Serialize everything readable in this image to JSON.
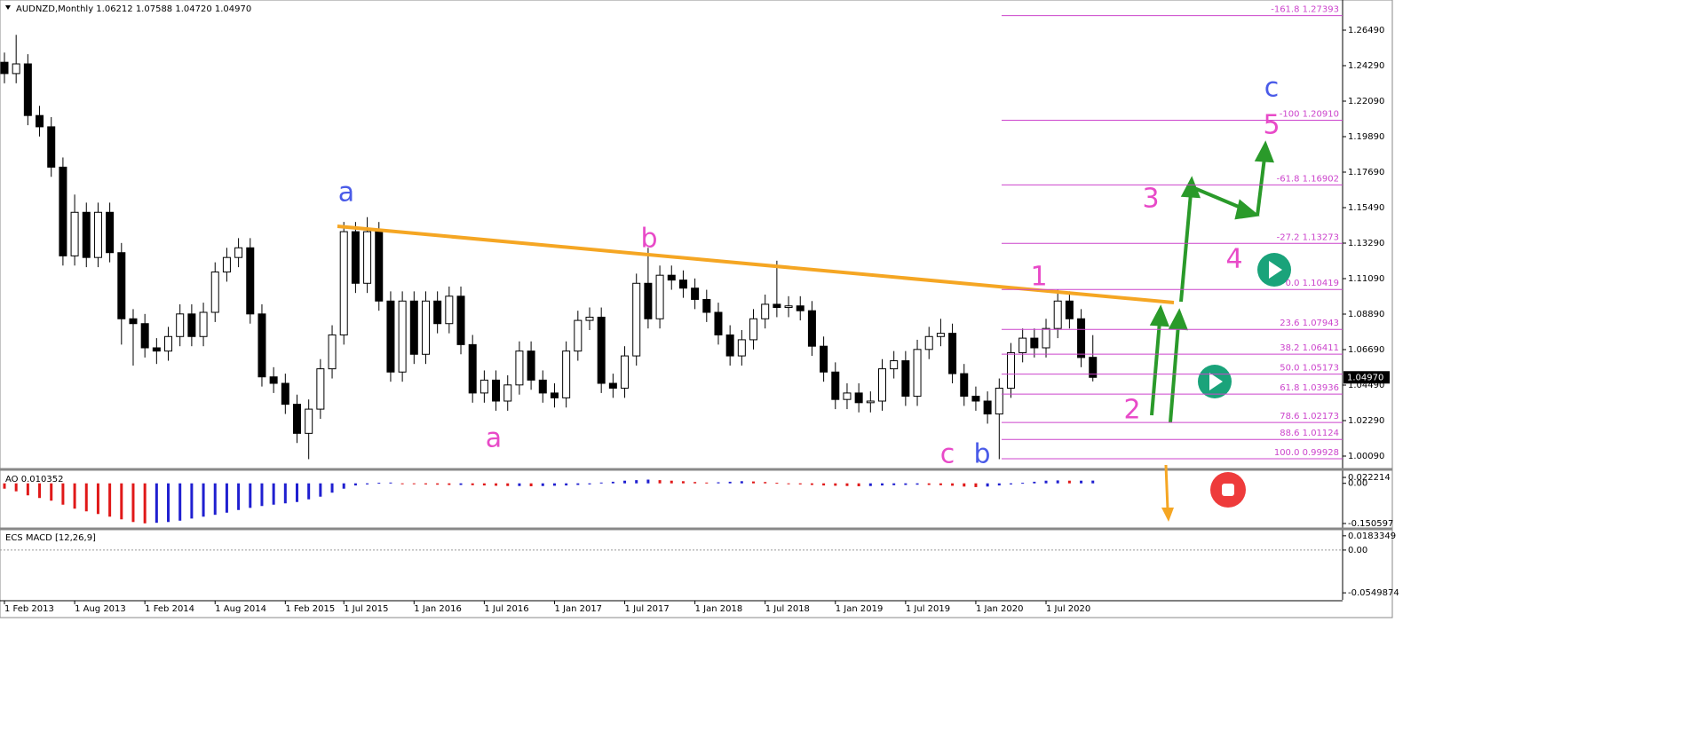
{
  "chart_data": {
    "type": "candlestick",
    "title": "AUDNZD,Monthly  1.06212 1.07588 1.04720 1.04970",
    "categories": [
      "1 Feb 2013",
      null,
      null,
      null,
      null,
      null,
      "1 Aug 2013",
      null,
      null,
      null,
      null,
      null,
      "1 Feb 2014",
      null,
      null,
      null,
      null,
      null,
      "1 Aug 2014",
      null,
      null,
      null,
      null,
      null,
      "1 Feb 2015",
      null,
      null,
      null,
      null,
      "1 Jul 2015",
      null,
      null,
      null,
      null,
      null,
      "1 Jan 2016",
      null,
      null,
      null,
      null,
      null,
      "1 Jul 2016",
      null,
      null,
      null,
      null,
      null,
      "1 Jan 2017",
      null,
      null,
      null,
      null,
      null,
      "1 Jul 2017",
      null,
      null,
      null,
      null,
      null,
      "1 Jan 2018",
      null,
      null,
      null,
      null,
      null,
      "1 Jul 2018",
      null,
      null,
      null,
      null,
      null,
      "1 Jan 2019",
      null,
      null,
      null,
      null,
      null,
      "1 Jul 2019",
      null,
      null,
      null,
      null,
      null,
      "1 Jan 2020",
      null,
      null,
      null,
      null,
      null,
      "1 Jul 2020",
      null,
      null,
      null,
      null
    ],
    "open": [
      1.245,
      1.238,
      1.244,
      1.212,
      1.205,
      1.18,
      1.125,
      1.152,
      1.124,
      1.152,
      1.127,
      1.086,
      1.083,
      1.068,
      1.066,
      1.075,
      1.089,
      1.075,
      1.09,
      1.115,
      1.124,
      1.13,
      1.089,
      1.05,
      1.046,
      1.033,
      1.015,
      1.03,
      1.055,
      1.076,
      1.14,
      1.108,
      1.14,
      1.097,
      1.053,
      1.097,
      1.064,
      1.097,
      1.083,
      1.1,
      1.07,
      1.04,
      1.048,
      1.035,
      1.045,
      1.066,
      1.048,
      1.04,
      1.037,
      1.066,
      1.085,
      1.087,
      1.046,
      1.043,
      1.063,
      1.108,
      1.086,
      1.113,
      1.11,
      1.105,
      1.098,
      1.09,
      1.076,
      1.063,
      1.073,
      1.086,
      1.095,
      1.093,
      1.094,
      1.091,
      1.069,
      1.053,
      1.036,
      1.04,
      1.034,
      1.035,
      1.055,
      1.06,
      1.038,
      1.067,
      1.075,
      1.077,
      1.052,
      1.038,
      1.035,
      1.027,
      1.043,
      1.065,
      1.074,
      1.068,
      1.08,
      1.097,
      1.086,
      1.06212
    ],
    "high": [
      1.251,
      1.262,
      1.25,
      1.218,
      1.211,
      1.186,
      1.163,
      1.158,
      1.158,
      1.158,
      1.133,
      1.092,
      1.089,
      1.074,
      1.081,
      1.095,
      1.095,
      1.096,
      1.121,
      1.13,
      1.136,
      1.136,
      1.095,
      1.056,
      1.052,
      1.039,
      1.036,
      1.061,
      1.082,
      1.146,
      1.146,
      1.149,
      1.146,
      1.103,
      1.103,
      1.103,
      1.103,
      1.103,
      1.106,
      1.106,
      1.076,
      1.054,
      1.054,
      1.051,
      1.072,
      1.072,
      1.054,
      1.046,
      1.072,
      1.091,
      1.093,
      1.093,
      1.052,
      1.069,
      1.114,
      1.13,
      1.119,
      1.119,
      1.116,
      1.111,
      1.104,
      1.096,
      1.082,
      1.079,
      1.092,
      1.101,
      1.122,
      1.1,
      1.1,
      1.097,
      1.075,
      1.059,
      1.046,
      1.046,
      1.041,
      1.061,
      1.066,
      1.066,
      1.073,
      1.081,
      1.086,
      1.083,
      1.058,
      1.044,
      1.041,
      1.049,
      1.071,
      1.08,
      1.08,
      1.086,
      1.104,
      1.103,
      1.092,
      1.07588
    ],
    "low": [
      1.232,
      1.232,
      1.206,
      1.199,
      1.174,
      1.119,
      1.119,
      1.118,
      1.118,
      1.121,
      1.07,
      1.057,
      1.062,
      1.058,
      1.06,
      1.069,
      1.069,
      1.069,
      1.084,
      1.109,
      1.118,
      1.083,
      1.044,
      1.04,
      1.027,
      1.009,
      0.999,
      1.024,
      1.049,
      1.07,
      1.102,
      1.102,
      1.091,
      1.047,
      1.047,
      1.058,
      1.058,
      1.077,
      1.077,
      1.064,
      1.034,
      1.034,
      1.029,
      1.029,
      1.039,
      1.042,
      1.034,
      1.031,
      1.031,
      1.06,
      1.079,
      1.04,
      1.037,
      1.037,
      1.057,
      1.08,
      1.08,
      1.104,
      1.099,
      1.092,
      1.084,
      1.07,
      1.057,
      1.057,
      1.067,
      1.08,
      1.087,
      1.087,
      1.085,
      1.063,
      1.047,
      1.03,
      1.03,
      1.028,
      1.028,
      1.029,
      1.049,
      1.032,
      1.032,
      1.061,
      1.069,
      1.046,
      1.032,
      1.029,
      1.021,
      0.999,
      1.037,
      1.059,
      1.062,
      1.062,
      1.074,
      1.08,
      1.056,
      1.0472
    ],
    "close": [
      1.238,
      1.244,
      1.212,
      1.205,
      1.18,
      1.125,
      1.152,
      1.124,
      1.152,
      1.127,
      1.086,
      1.083,
      1.068,
      1.066,
      1.075,
      1.089,
      1.075,
      1.09,
      1.115,
      1.124,
      1.13,
      1.089,
      1.05,
      1.046,
      1.033,
      1.015,
      1.03,
      1.055,
      1.076,
      1.14,
      1.108,
      1.14,
      1.097,
      1.053,
      1.097,
      1.064,
      1.097,
      1.083,
      1.1,
      1.07,
      1.04,
      1.048,
      1.035,
      1.045,
      1.066,
      1.048,
      1.04,
      1.037,
      1.066,
      1.085,
      1.087,
      1.046,
      1.043,
      1.063,
      1.108,
      1.086,
      1.113,
      1.11,
      1.105,
      1.098,
      1.09,
      1.076,
      1.063,
      1.073,
      1.086,
      1.095,
      1.093,
      1.094,
      1.091,
      1.069,
      1.053,
      1.036,
      1.04,
      1.034,
      1.035,
      1.055,
      1.06,
      1.038,
      1.067,
      1.075,
      1.077,
      1.052,
      1.038,
      1.035,
      1.027,
      1.043,
      1.065,
      1.074,
      1.068,
      1.08,
      1.097,
      1.086,
      1.062,
      1.0497
    ],
    "up_color": "#ffffff",
    "down_color": "#000000",
    "ylim": [
      0.9932,
      1.2825
    ],
    "yticks": [
      {
        "value": 1.2649,
        "label": "1.26490"
      },
      {
        "value": 1.2429,
        "label": "1.24290"
      },
      {
        "value": 1.2209,
        "label": "1.22090"
      },
      {
        "value": 1.1989,
        "label": "1.19890"
      },
      {
        "value": 1.1769,
        "label": "1.17690"
      },
      {
        "value": 1.1549,
        "label": "1.15490"
      },
      {
        "value": 1.1329,
        "label": "1.13290"
      },
      {
        "value": 1.1109,
        "label": "1.11090"
      },
      {
        "value": 1.0889,
        "label": "1.08890"
      },
      {
        "value": 1.0669,
        "label": "1.06690"
      },
      {
        "value": 1.0449,
        "label": "1.04490"
      },
      {
        "value": 1.0229,
        "label": "1.02290"
      },
      {
        "value": 1.0009,
        "label": "1.00090"
      }
    ],
    "price_tag": {
      "value": 1.0497,
      "label": "1.04970"
    },
    "fib_color": "#cc44cc",
    "fib_levels": [
      {
        "value": 1.27393,
        "label": "-161.8 1.27393"
      },
      {
        "value": 1.2091,
        "label": "-100 1.20910"
      },
      {
        "value": 1.16902,
        "label": "-61.8 1.16902"
      },
      {
        "value": 1.13273,
        "label": "-27.2 1.13273"
      },
      {
        "value": 1.10419,
        "label": "0.0 1.10419"
      },
      {
        "value": 1.07943,
        "label": "23.6 1.07943"
      },
      {
        "value": 1.06411,
        "label": "38.2 1.06411"
      },
      {
        "value": 1.05173,
        "label": "50.0 1.05173"
      },
      {
        "value": 1.03936,
        "label": "61.8 1.03936"
      },
      {
        "value": 1.02173,
        "label": "78.6 1.02173"
      },
      {
        "value": 1.01124,
        "label": "88.6 1.01124"
      },
      {
        "value": 0.99928,
        "label": "100.0 0.99928"
      }
    ],
    "annotations": [
      {
        "text": "a",
        "color": "#4a5be8"
      },
      {
        "text": "b",
        "color": "#e84ac8"
      },
      {
        "text": "a",
        "color": "#e84ac8"
      },
      {
        "text": "c",
        "color": "#e84ac8"
      },
      {
        "text": "b",
        "color": "#4a5be8"
      },
      {
        "text": "1",
        "color": "#e84ac8"
      },
      {
        "text": "2",
        "color": "#e84ac8"
      },
      {
        "text": "3",
        "color": "#e84ac8"
      },
      {
        "text": "4",
        "color": "#e84ac8"
      },
      {
        "text": "5",
        "color": "#e84ac8"
      },
      {
        "text": "c",
        "color": "#4a5be8"
      }
    ],
    "ao": {
      "title": "AO 0.010352",
      "up_color": "#1f1fd0",
      "down_color": "#e01818",
      "ylim": [
        -0.164,
        0.039
      ],
      "yticks": [
        0.022214,
        {
          "value": 0,
          "label": "0.00"
        },
        -0.150597
      ],
      "values": [
        -0.02,
        -0.03,
        -0.045,
        -0.055,
        -0.065,
        -0.08,
        -0.095,
        -0.105,
        -0.115,
        -0.125,
        -0.135,
        -0.145,
        -0.15,
        -0.148,
        -0.145,
        -0.14,
        -0.132,
        -0.125,
        -0.118,
        -0.11,
        -0.1,
        -0.092,
        -0.085,
        -0.08,
        -0.075,
        -0.07,
        -0.06,
        -0.05,
        -0.035,
        -0.02,
        -0.008,
        -0.004,
        0.002,
        0.003,
        -0.002,
        -0.003,
        -0.004,
        -0.005,
        -0.006,
        -0.006,
        -0.007,
        -0.008,
        -0.009,
        -0.01,
        -0.01,
        -0.011,
        -0.01,
        -0.009,
        -0.008,
        -0.006,
        -0.004,
        0.003,
        0.006,
        0.01,
        0.012,
        0.014,
        0.012,
        0.01,
        0.008,
        0.005,
        0.003,
        0.004,
        0.006,
        0.008,
        0.007,
        0.005,
        0.002,
        -0.002,
        -0.004,
        -0.006,
        -0.008,
        -0.009,
        -0.01,
        -0.011,
        -0.01,
        -0.008,
        -0.007,
        -0.006,
        -0.005,
        -0.006,
        -0.007,
        -0.009,
        -0.012,
        -0.014,
        -0.012,
        -0.008,
        -0.004,
        0.002,
        0.006,
        0.01,
        0.011,
        0.01,
        0.01,
        0.010352
      ]
    },
    "macd": {
      "title": "ECS MACD [12,26,9]",
      "ylim": [
        -0.064,
        0.025
      ],
      "yticks": [
        0.0183349,
        {
          "value": 0,
          "label": "0.00"
        },
        -0.0549874
      ]
    }
  }
}
